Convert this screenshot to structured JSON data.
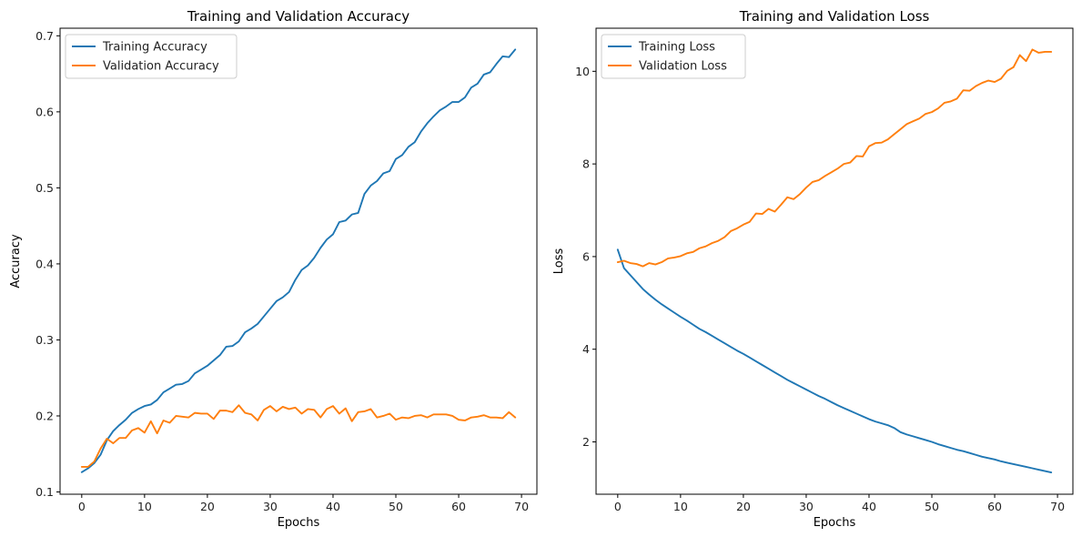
{
  "chart_data": [
    {
      "type": "line",
      "title": "Training and Validation Accuracy",
      "xlabel": "Epochs",
      "ylabel": "Accuracy",
      "xlim": [
        -3.45,
        72.45
      ],
      "ylim": [
        0.097,
        0.71
      ],
      "xticks": [
        0,
        10,
        20,
        30,
        40,
        50,
        60,
        70
      ],
      "yticks": [
        0.1,
        0.2,
        0.3,
        0.4,
        0.5,
        0.6,
        0.7
      ],
      "ytick_decimals": 1,
      "grid": false,
      "legend_position": "upper-left",
      "x": [
        0,
        1,
        2,
        3,
        4,
        5,
        6,
        7,
        8,
        9,
        10,
        11,
        12,
        13,
        14,
        15,
        16,
        17,
        18,
        19,
        20,
        21,
        22,
        23,
        24,
        25,
        26,
        27,
        28,
        29,
        30,
        31,
        32,
        33,
        34,
        35,
        36,
        37,
        38,
        39,
        40,
        41,
        42,
        43,
        44,
        45,
        46,
        47,
        48,
        49,
        50,
        51,
        52,
        53,
        54,
        55,
        56,
        57,
        58,
        59,
        60,
        61,
        62,
        63,
        64,
        65,
        66,
        67,
        68,
        69
      ],
      "series": [
        {
          "name": "Training Accuracy",
          "color": "#1f77b4",
          "values": [
            0.126,
            0.131,
            0.138,
            0.149,
            0.168,
            0.18,
            0.188,
            0.195,
            0.204,
            0.209,
            0.213,
            0.215,
            0.221,
            0.231,
            0.236,
            0.241,
            0.242,
            0.246,
            0.256,
            0.261,
            0.266,
            0.273,
            0.28,
            0.291,
            0.292,
            0.298,
            0.31,
            0.315,
            0.321,
            0.331,
            0.341,
            0.351,
            0.356,
            0.363,
            0.379,
            0.392,
            0.398,
            0.408,
            0.421,
            0.432,
            0.439,
            0.455,
            0.457,
            0.465,
            0.467,
            0.492,
            0.503,
            0.509,
            0.519,
            0.522,
            0.538,
            0.543,
            0.554,
            0.56,
            0.574,
            0.585,
            0.594,
            0.602,
            0.607,
            0.613,
            0.613,
            0.619,
            0.632,
            0.637,
            0.649,
            0.652,
            0.663,
            0.673,
            0.672,
            0.682
          ]
        },
        {
          "name": "Validation Accuracy",
          "color": "#ff7f0e",
          "values": [
            0.133,
            0.133,
            0.14,
            0.157,
            0.17,
            0.164,
            0.171,
            0.171,
            0.181,
            0.184,
            0.178,
            0.193,
            0.177,
            0.194,
            0.191,
            0.2,
            0.199,
            0.198,
            0.204,
            0.203,
            0.203,
            0.196,
            0.207,
            0.207,
            0.205,
            0.214,
            0.204,
            0.202,
            0.194,
            0.208,
            0.213,
            0.206,
            0.212,
            0.209,
            0.211,
            0.203,
            0.209,
            0.208,
            0.198,
            0.209,
            0.213,
            0.203,
            0.21,
            0.193,
            0.205,
            0.206,
            0.209,
            0.198,
            0.2,
            0.203,
            0.195,
            0.198,
            0.197,
            0.2,
            0.201,
            0.198,
            0.202,
            0.202,
            0.202,
            0.2,
            0.195,
            0.194,
            0.198,
            0.199,
            0.201,
            0.198,
            0.198,
            0.197,
            0.205,
            0.198
          ]
        }
      ]
    },
    {
      "type": "line",
      "title": "Training and Validation Loss",
      "xlabel": "Epochs",
      "ylabel": "Loss",
      "xlim": [
        -3.45,
        72.45
      ],
      "ylim": [
        0.87,
        10.93
      ],
      "xticks": [
        0,
        10,
        20,
        30,
        40,
        50,
        60,
        70
      ],
      "yticks": [
        2,
        4,
        6,
        8,
        10
      ],
      "ytick_decimals": 0,
      "grid": false,
      "legend_position": "upper-left",
      "x": [
        0,
        1,
        2,
        3,
        4,
        5,
        6,
        7,
        8,
        9,
        10,
        11,
        12,
        13,
        14,
        15,
        16,
        17,
        18,
        19,
        20,
        21,
        22,
        23,
        24,
        25,
        26,
        27,
        28,
        29,
        30,
        31,
        32,
        33,
        34,
        35,
        36,
        37,
        38,
        39,
        40,
        41,
        42,
        43,
        44,
        45,
        46,
        47,
        48,
        49,
        50,
        51,
        52,
        53,
        54,
        55,
        56,
        57,
        58,
        59,
        60,
        61,
        62,
        63,
        64,
        65,
        66,
        67,
        68,
        69
      ],
      "series": [
        {
          "name": "Training Loss",
          "color": "#1f77b4",
          "values": [
            6.15,
            5.75,
            5.6,
            5.45,
            5.3,
            5.18,
            5.07,
            4.97,
            4.88,
            4.79,
            4.7,
            4.62,
            4.53,
            4.44,
            4.37,
            4.29,
            4.21,
            4.13,
            4.05,
            3.97,
            3.9,
            3.82,
            3.74,
            3.66,
            3.58,
            3.5,
            3.42,
            3.34,
            3.27,
            3.2,
            3.13,
            3.06,
            2.99,
            2.93,
            2.86,
            2.79,
            2.73,
            2.67,
            2.61,
            2.55,
            2.49,
            2.44,
            2.4,
            2.36,
            2.3,
            2.21,
            2.16,
            2.12,
            2.08,
            2.04,
            2.0,
            1.95,
            1.91,
            1.87,
            1.83,
            1.8,
            1.76,
            1.72,
            1.68,
            1.65,
            1.62,
            1.58,
            1.55,
            1.52,
            1.49,
            1.46,
            1.43,
            1.4,
            1.37,
            1.34
          ]
        },
        {
          "name": "Validation Loss",
          "color": "#ff7f0e",
          "values": [
            5.88,
            5.91,
            5.86,
            5.84,
            5.79,
            5.86,
            5.83,
            5.88,
            5.96,
            5.98,
            6.01,
            6.07,
            6.1,
            6.18,
            6.22,
            6.29,
            6.34,
            6.42,
            6.55,
            6.61,
            6.69,
            6.75,
            6.93,
            6.92,
            7.03,
            6.97,
            7.12,
            7.28,
            7.24,
            7.35,
            7.49,
            7.61,
            7.65,
            7.74,
            7.82,
            7.9,
            8.0,
            8.03,
            8.17,
            8.16,
            8.38,
            8.45,
            8.46,
            8.53,
            8.64,
            8.75,
            8.86,
            8.92,
            8.98,
            9.08,
            9.12,
            9.2,
            9.32,
            9.35,
            9.41,
            9.59,
            9.58,
            9.68,
            9.75,
            9.8,
            9.77,
            9.84,
            10.01,
            10.09,
            10.35,
            10.22,
            10.47,
            10.4,
            10.42,
            10.42
          ]
        }
      ]
    }
  ]
}
